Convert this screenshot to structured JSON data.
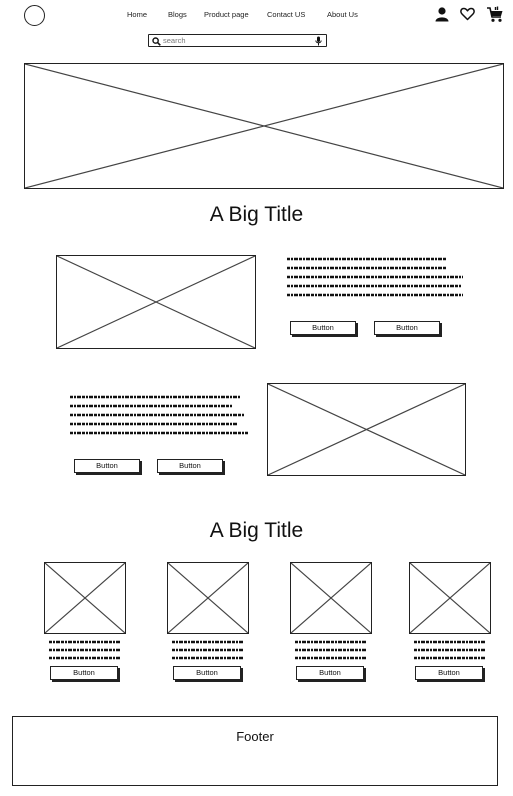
{
  "header": {
    "nav": [
      "Home",
      "Blogs",
      "Product page",
      "Contact US",
      "About Us"
    ],
    "search_placeholder": "search",
    "icons": [
      "logo-circle-icon",
      "user-icon",
      "heart-icon",
      "cart-icon",
      "search-icon",
      "microphone-icon"
    ]
  },
  "hero": {
    "image": "image-placeholder"
  },
  "section1": {
    "title": "A Big Title",
    "row1": {
      "button1": "Button",
      "button2": "Button"
    },
    "row2": {
      "button1": "Button",
      "button2": "Button"
    }
  },
  "section2": {
    "title": "A Big Title",
    "cards": [
      {
        "button": "Button"
      },
      {
        "button": "Button"
      },
      {
        "button": "Button"
      },
      {
        "button": "Button"
      }
    ]
  },
  "footer": {
    "label": "Footer"
  }
}
